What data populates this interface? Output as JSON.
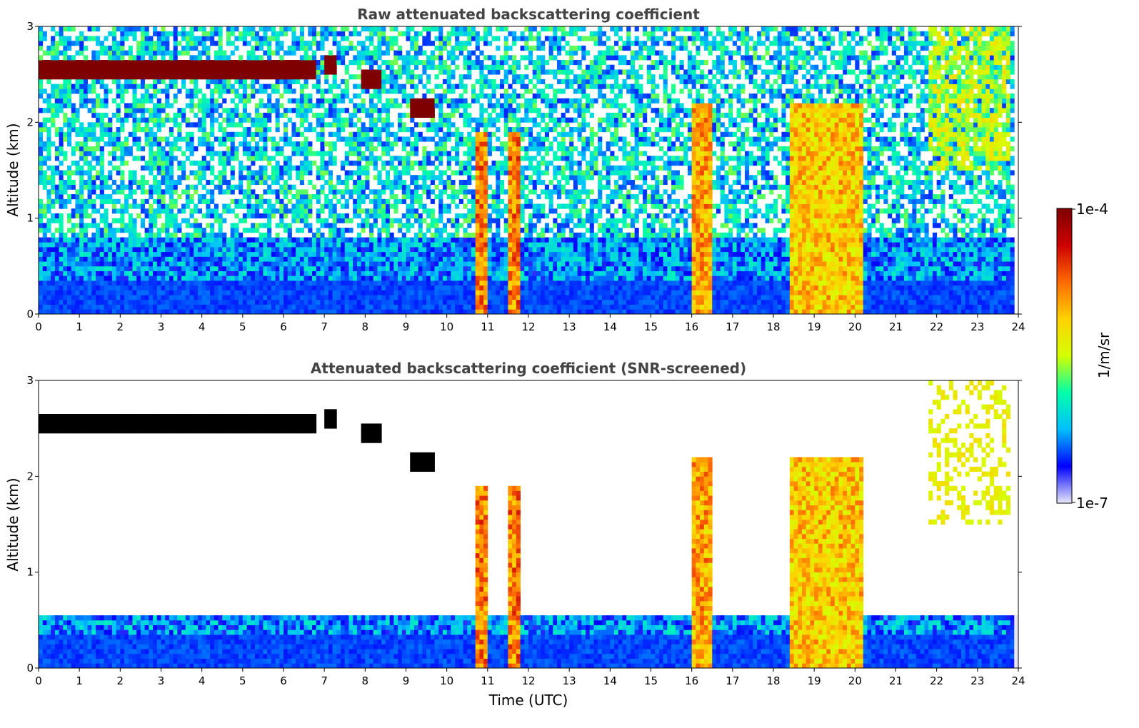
{
  "chart_data": [
    {
      "type": "heatmap",
      "title": "Raw attenuated backscattering coefficient",
      "xlabel": "",
      "ylabel": "Altitude (km)",
      "xlim": [
        0,
        24
      ],
      "ylim": [
        0,
        3
      ],
      "xticks": [
        "0",
        "1",
        "2",
        "3",
        "4",
        "5",
        "6",
        "7",
        "8",
        "9",
        "10",
        "11",
        "12",
        "13",
        "14",
        "15",
        "16",
        "17",
        "18",
        "19",
        "20",
        "21",
        "22",
        "23",
        "24"
      ],
      "yticks": [
        "0",
        "1",
        "2",
        "3"
      ],
      "background": "noisy low signal above ~0.4 km, strong aerosol layer near surface",
      "features": [
        {
          "kind": "cloud-layer",
          "t_start": 0,
          "t_end": 6.8,
          "altitude_km": 2.55,
          "level": 1.0
        },
        {
          "kind": "cloud-patch",
          "t_start": 7.0,
          "t_end": 7.3,
          "altitude_km": 2.6,
          "level": 1.0
        },
        {
          "kind": "cloud-patch",
          "t_start": 7.9,
          "t_end": 8.4,
          "altitude_km": 2.45,
          "level": 1.0
        },
        {
          "kind": "cloud-patch",
          "t_start": 9.1,
          "t_end": 9.7,
          "altitude_km": 2.15,
          "level": 1.0
        },
        {
          "kind": "column",
          "t_start": 10.7,
          "t_end": 10.95,
          "top_km": 1.9,
          "level": 0.85
        },
        {
          "kind": "column",
          "t_start": 11.55,
          "t_end": 11.85,
          "top_km": 1.9,
          "level": 0.85
        },
        {
          "kind": "column",
          "t_start": 16.0,
          "t_end": 16.5,
          "top_km": 2.2,
          "level": 0.8
        },
        {
          "kind": "column",
          "t_start": 18.4,
          "t_end": 20.2,
          "top_km": 2.2,
          "level": 0.75
        },
        {
          "kind": "fallstreak",
          "t_start": 21.8,
          "t_end": 23.8,
          "top_km": 3.0,
          "bottom_km": 1.5,
          "level": 0.6
        }
      ]
    },
    {
      "type": "heatmap",
      "title": "Attenuated backscattering coefficient (SNR-screened)",
      "xlabel": "Time (UTC)",
      "ylabel": "Altitude (km)",
      "xlim": [
        0,
        24
      ],
      "ylim": [
        0,
        3
      ],
      "xticks": [
        "0",
        "1",
        "2",
        "3",
        "4",
        "5",
        "6",
        "7",
        "8",
        "9",
        "10",
        "11",
        "12",
        "13",
        "14",
        "15",
        "16",
        "17",
        "18",
        "19",
        "20",
        "21",
        "22",
        "23",
        "24"
      ],
      "yticks": [
        "0",
        "1",
        "2",
        "3"
      ],
      "screened_fill": "#ffffff",
      "saturated_fill": "#000000"
    }
  ],
  "colorbar": {
    "label": "1/m/sr",
    "max_label": "1e-4",
    "min_label": "1e-7",
    "colormap": [
      "#e8e8f8",
      "#0000ff",
      "#00bfff",
      "#00ffaa",
      "#d4ff00",
      "#ffd200",
      "#ff6a00",
      "#cc0000",
      "#7f0000"
    ]
  }
}
